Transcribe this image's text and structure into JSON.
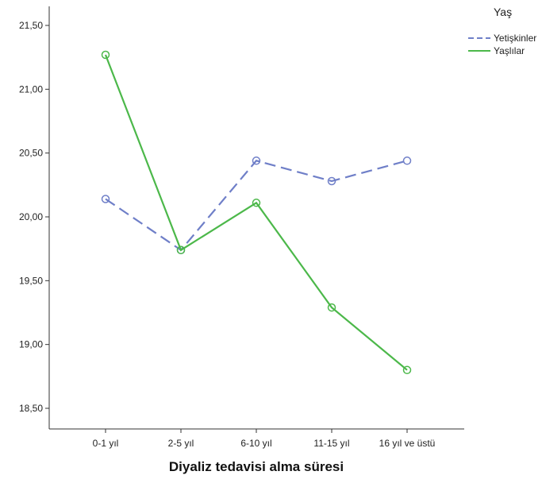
{
  "chart_data": {
    "type": "line",
    "categories": [
      "0-1 yıl",
      "2-5 yıl",
      "6-10 yıl",
      "11-15 yıl",
      "16 yıl ve üstü"
    ],
    "series": [
      {
        "name": "Yetişkinler",
        "values": [
          20.14,
          19.74,
          20.44,
          20.28,
          20.44
        ],
        "color": "#6f7fc8",
        "dash": "dashed"
      },
      {
        "name": "Yaşlılar",
        "values": [
          21.27,
          19.74,
          20.11,
          19.29,
          18.8
        ],
        "color": "#4cb84a",
        "dash": "solid"
      }
    ],
    "title": "",
    "xlabel": "Diyaliz tedavisi alma süresi",
    "ylabel": "",
    "ylim": [
      18.5,
      21.5
    ],
    "yticks": [
      "18,50",
      "19,00",
      "19,50",
      "20,00",
      "20,50",
      "21,00",
      "21,50"
    ],
    "legend_title": "Yaş",
    "legend_position": "top-right",
    "grid": false
  }
}
